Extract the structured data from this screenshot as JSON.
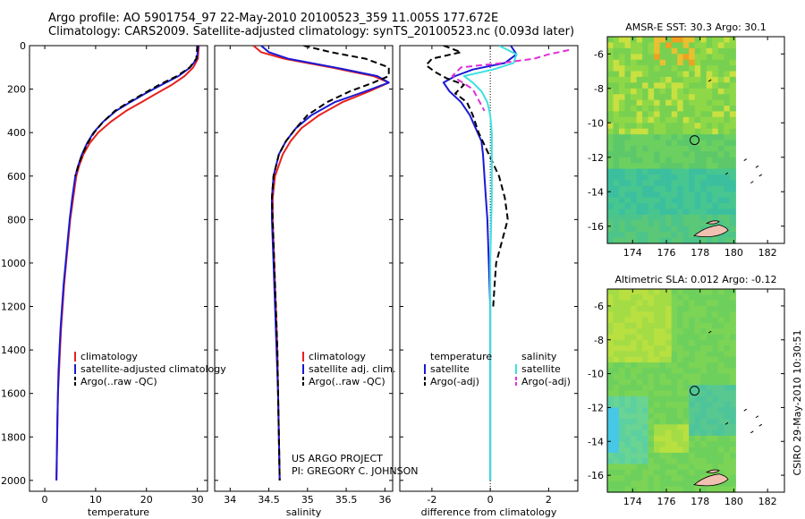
{
  "header": {
    "line1": "Argo profile: AO 5901754_97 22-May-2010 20100523_359 11.005S 177.672E",
    "line2": "Climatology: CARS2009. Satellite-adjusted climatology: synTS_20100523.nc (0.093d later)"
  },
  "side_label": "CSIRO 29-May-2010 10:30:51",
  "credits": {
    "line1": "US ARGO PROJECT",
    "line2": "PI: GREGORY C. JOHNSON"
  },
  "colors": {
    "climatology": "#e8211c",
    "satellite": "#1a1ad6",
    "argo": "#000000",
    "sal_satellite": "#3ee0e0",
    "sal_argo": "#e030d8"
  },
  "chart_data": [
    {
      "id": "temperature",
      "type": "line",
      "xlabel": "temperature",
      "ylabel": "",
      "xlim": [
        -3,
        32
      ],
      "ylim": [
        2050,
        0
      ],
      "y_reversed": true,
      "xticks": [
        0,
        10,
        20,
        30
      ],
      "yticks": [
        0,
        200,
        400,
        600,
        800,
        1000,
        1200,
        1400,
        1600,
        1800,
        2000
      ],
      "legend": {
        "placement": "lower-middle",
        "entries": [
          "climatology",
          "satellite-adjusted climatology",
          "Argo(..raw -QC)"
        ]
      },
      "series": [
        {
          "name": "climatology",
          "style": "solid",
          "color": "#e8211c",
          "x": [
            30.3,
            30.1,
            29.2,
            27.5,
            25.0,
            22.0,
            19.0,
            16.0,
            13.0,
            10.5,
            8.8,
            7.6,
            6.8,
            6.2,
            5.6,
            5.0,
            4.6,
            4.2,
            3.8,
            3.5,
            3.2,
            3.0,
            2.8,
            2.6,
            2.5,
            2.4,
            2.3
          ],
          "y": [
            0,
            60,
            100,
            140,
            180,
            220,
            260,
            300,
            350,
            400,
            450,
            500,
            550,
            600,
            700,
            800,
            900,
            1000,
            1100,
            1200,
            1300,
            1400,
            1500,
            1600,
            1700,
            1850,
            2000
          ]
        },
        {
          "name": "satellite-adjusted climatology",
          "style": "solid",
          "color": "#1a1ad6",
          "x": [
            30.2,
            29.9,
            28.6,
            26.3,
            23.0,
            19.8,
            16.8,
            14.0,
            11.5,
            9.6,
            8.3,
            7.3,
            6.6,
            6.0,
            5.4,
            4.9,
            4.5,
            4.1,
            3.7,
            3.4,
            3.1,
            2.9,
            2.7,
            2.6,
            2.5,
            2.4,
            2.3
          ],
          "y": [
            0,
            60,
            100,
            140,
            180,
            220,
            260,
            300,
            350,
            400,
            450,
            500,
            550,
            600,
            700,
            800,
            900,
            1000,
            1100,
            1200,
            1300,
            1400,
            1500,
            1600,
            1700,
            1850,
            2000
          ]
        },
        {
          "name": "Argo(..raw -QC)",
          "style": "dashed",
          "color": "#000000",
          "x": [
            30.0,
            29.8,
            28.5,
            26.0,
            22.5,
            19.5,
            16.5,
            13.8,
            11.5,
            9.7,
            8.4,
            7.4,
            6.6,
            6.0
          ],
          "y": [
            0,
            60,
            100,
            140,
            180,
            220,
            260,
            300,
            350,
            400,
            450,
            500,
            550,
            600
          ]
        }
      ]
    },
    {
      "id": "salinity",
      "type": "line",
      "xlabel": "salinity",
      "ylabel": "",
      "xlim": [
        33.8,
        36.1
      ],
      "ylim": [
        2050,
        0
      ],
      "y_reversed": true,
      "xticks": [
        34,
        34.5,
        35,
        35.5,
        36
      ],
      "xticklabels": [
        "34",
        "34.5",
        "35",
        "35.5",
        "36"
      ],
      "legend": {
        "placement": "lower-middle",
        "entries": [
          "climatology",
          "satellite adj. clim.",
          "Argo(..raw -QC)"
        ]
      },
      "series": [
        {
          "name": "climatology",
          "style": "solid",
          "color": "#e8211c",
          "x": [
            34.3,
            34.4,
            34.7,
            35.3,
            35.85,
            36.05,
            35.8,
            35.45,
            35.15,
            34.92,
            34.78,
            34.68,
            34.58,
            34.55,
            34.55,
            34.57,
            34.59,
            34.61,
            34.62,
            34.63,
            34.64
          ],
          "y": [
            0,
            30,
            60,
            100,
            140,
            170,
            210,
            260,
            320,
            380,
            440,
            500,
            600,
            700,
            800,
            1000,
            1200,
            1400,
            1600,
            1800,
            2000
          ]
        },
        {
          "name": "satellite adj. clim.",
          "style": "solid",
          "color": "#1a1ad6",
          "x": [
            34.4,
            34.5,
            34.75,
            35.35,
            35.9,
            36.05,
            35.75,
            35.35,
            35.05,
            34.85,
            34.72,
            34.63,
            34.56,
            34.54,
            34.54,
            34.56,
            34.58,
            34.6,
            34.62,
            34.63,
            34.64
          ],
          "y": [
            0,
            30,
            60,
            100,
            140,
            170,
            210,
            260,
            320,
            380,
            440,
            500,
            600,
            700,
            800,
            1000,
            1200,
            1400,
            1600,
            1800,
            2000
          ]
        },
        {
          "name": "Argo(..raw -QC)",
          "style": "dashed",
          "color": "#000000",
          "x": [
            34.95,
            35.3,
            35.75,
            36.05,
            36.05,
            35.85,
            35.55,
            35.25,
            35.0,
            34.85,
            34.72,
            34.63,
            34.56,
            34.54,
            34.55,
            34.57,
            34.59,
            34.61,
            34.62,
            34.63,
            34.64
          ],
          "y": [
            0,
            30,
            60,
            100,
            140,
            170,
            210,
            260,
            320,
            380,
            440,
            500,
            600,
            700,
            800,
            1000,
            1200,
            1400,
            1600,
            1800,
            2000
          ]
        }
      ]
    },
    {
      "id": "difference",
      "type": "line",
      "xlabel": "difference from climatology",
      "ylabel": "",
      "xlim": [
        -3.1,
        3.0
      ],
      "ylim": [
        2050,
        0
      ],
      "y_reversed": true,
      "xticks": [
        -2,
        0,
        2
      ],
      "zero_line": 0,
      "legend": {
        "placement": "lower-middle",
        "entries": [
          "temperature",
          "satellite",
          "Argo(-adj)",
          "salinity",
          "satellite",
          "Argo(-adj)"
        ]
      },
      "series": [
        {
          "name": "satellite (temperature)",
          "style": "solid",
          "color": "#1a1ad6",
          "x": [
            0.7,
            0.9,
            0.5,
            -0.6,
            -1.2,
            -1.6,
            -1.4,
            -1.0,
            -0.7,
            -0.5,
            -0.3,
            -0.25,
            -0.2,
            -0.15,
            -0.1,
            -0.05,
            0.0,
            0.0,
            0.0
          ],
          "y": [
            0,
            40,
            80,
            110,
            140,
            170,
            210,
            260,
            320,
            380,
            440,
            500,
            600,
            700,
            800,
            1000,
            1200,
            1600,
            2000
          ]
        },
        {
          "name": "Argo(-adj) (temperature)",
          "style": "dashed",
          "color": "#000000",
          "x": [
            -1.6,
            -1.0,
            -2.0,
            -2.2,
            -1.9,
            -1.5,
            -0.9,
            -1.2,
            -0.8,
            -0.6,
            -0.4,
            0.3,
            0.5,
            0.6,
            0.4,
            0.2,
            0.15,
            0.1
          ],
          "y": [
            0,
            30,
            60,
            90,
            120,
            150,
            180,
            220,
            260,
            320,
            400,
            600,
            700,
            800,
            900,
            1000,
            1100,
            1200
          ]
        },
        {
          "name": "satellite (salinity)",
          "style": "solid",
          "color": "#3ee0e0",
          "x": [
            0.3,
            0.9,
            0.8,
            0.1,
            -0.9,
            -0.6,
            -0.3,
            -0.1,
            0.0,
            0.05,
            0.05,
            0.05,
            0.0,
            0.0,
            0.0
          ],
          "y": [
            0,
            40,
            80,
            110,
            140,
            170,
            210,
            260,
            320,
            400,
            500,
            700,
            1000,
            1500,
            2000
          ]
        },
        {
          "name": "Argo(-adj) (salinity)",
          "style": "dashed",
          "color": "#e030d8",
          "x": [
            2.7,
            2.0,
            1.5,
            0.4,
            -1.0,
            -1.3,
            -0.6,
            -0.2
          ],
          "y": [
            20,
            40,
            60,
            80,
            100,
            140,
            200,
            300
          ]
        }
      ]
    },
    {
      "id": "sst_map",
      "type": "heatmap",
      "title": "AMSR-E SST: 30.3 Argo: 30.1",
      "xlim": [
        172.5,
        183
      ],
      "ylim": [
        -17,
        -5
      ],
      "xticks": [
        174,
        176,
        178,
        180,
        182
      ],
      "yticks": [
        -16,
        -14,
        -12,
        -10,
        -8,
        -6
      ],
      "argo_position": {
        "lon": 177.672,
        "lat": -11.005
      }
    },
    {
      "id": "sla_map",
      "type": "heatmap",
      "title": "Altimetric SLA: 0.012 Argo: -0.12",
      "xlim": [
        172.5,
        183
      ],
      "ylim": [
        -17,
        -5
      ],
      "xticks": [
        174,
        176,
        178,
        180,
        182
      ],
      "yticks": [
        -16,
        -14,
        -12,
        -10,
        -8,
        -6
      ],
      "argo_position": {
        "lon": 177.672,
        "lat": -11.005
      }
    }
  ]
}
